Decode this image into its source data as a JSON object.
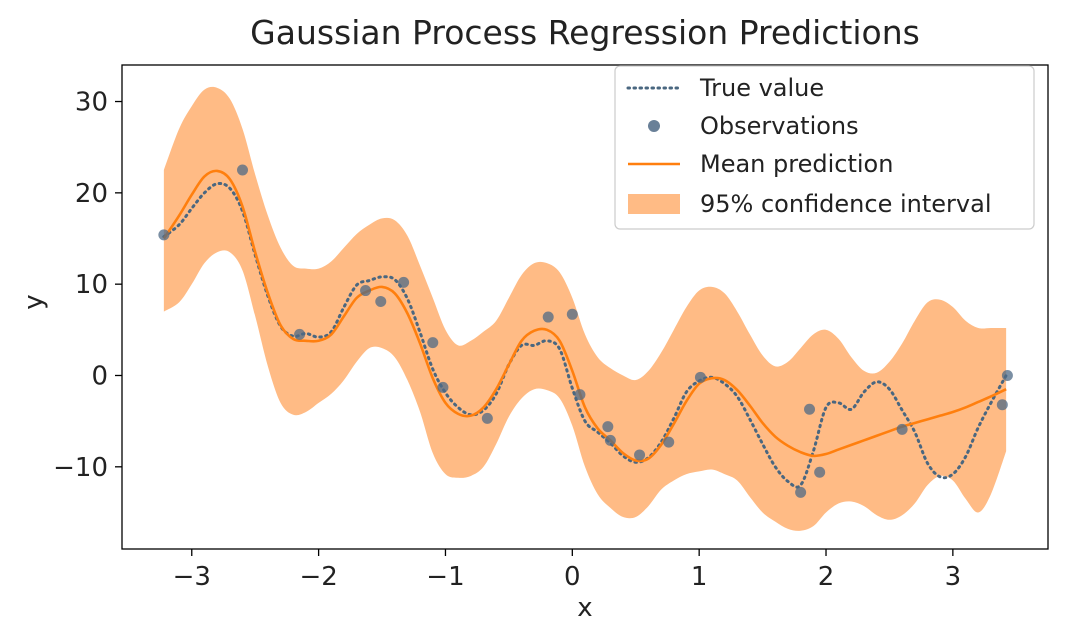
{
  "chart_data": {
    "type": "line",
    "title": "Gaussian Process Regression Predictions",
    "xlabel": "x",
    "ylabel": "y",
    "xlim": [
      -3.55,
      3.75
    ],
    "ylim": [
      -19,
      34
    ],
    "xticks": [
      -3,
      -2,
      -1,
      0,
      1,
      2,
      3
    ],
    "yticks": [
      -10,
      0,
      10,
      20,
      30
    ],
    "xtick_labels": [
      "−3",
      "−2",
      "−1",
      "0",
      "1",
      "2",
      "3"
    ],
    "ytick_labels": [
      "−10",
      "0",
      "10",
      "20",
      "30"
    ],
    "grid": false,
    "legend_position": "top-right",
    "legend": [
      "True value",
      "Observations",
      "Mean prediction",
      "95% confidence interval"
    ],
    "colors": {
      "true_value": "#4a6780",
      "observations": "#4f6a86",
      "mean": "#ff7f0e",
      "band": "#ffbb85"
    },
    "series": [
      {
        "name": "True value",
        "style": "dotted",
        "x": [
          -3.22,
          -3.1,
          -3.0,
          -2.9,
          -2.8,
          -2.7,
          -2.6,
          -2.5,
          -2.4,
          -2.3,
          -2.2,
          -2.1,
          -2.0,
          -1.9,
          -1.8,
          -1.7,
          -1.6,
          -1.5,
          -1.4,
          -1.3,
          -1.2,
          -1.1,
          -1.0,
          -0.9,
          -0.8,
          -0.7,
          -0.6,
          -0.5,
          -0.4,
          -0.3,
          -0.2,
          -0.1,
          0.0,
          0.1,
          0.2,
          0.3,
          0.4,
          0.5,
          0.6,
          0.7,
          0.8,
          0.9,
          1.0,
          1.1,
          1.2,
          1.3,
          1.4,
          1.5,
          1.6,
          1.7,
          1.8,
          1.9,
          2.0,
          2.1,
          2.2,
          2.3,
          2.4,
          2.5,
          2.6,
          2.7,
          2.8,
          2.9,
          3.0,
          3.1,
          3.2,
          3.3,
          3.42
        ],
        "y": [
          15.2,
          16.5,
          18.3,
          20.0,
          21.0,
          20.5,
          18.0,
          13.2,
          8.7,
          5.4,
          4.3,
          4.6,
          4.2,
          4.8,
          7.5,
          9.9,
          10.4,
          10.8,
          10.5,
          8.4,
          4.7,
          0.7,
          -1.9,
          -3.5,
          -4.3,
          -3.8,
          -2.0,
          1.2,
          3.3,
          3.3,
          3.8,
          2.9,
          -1.4,
          -5.0,
          -6.2,
          -7.4,
          -8.8,
          -9.5,
          -9.0,
          -7.3,
          -4.7,
          -1.8,
          -0.6,
          -0.2,
          -0.9,
          -2.3,
          -4.8,
          -7.5,
          -10.0,
          -11.6,
          -12.0,
          -8.3,
          -3.5,
          -3.0,
          -3.7,
          -1.8,
          -0.7,
          -1.5,
          -3.8,
          -6.2,
          -9.6,
          -11.1,
          -10.8,
          -8.9,
          -5.7,
          -3.0,
          0.0
        ]
      },
      {
        "name": "Mean prediction",
        "style": "solid",
        "x": [
          -3.22,
          -3.1,
          -3.0,
          -2.9,
          -2.8,
          -2.7,
          -2.6,
          -2.5,
          -2.4,
          -2.3,
          -2.2,
          -2.1,
          -2.0,
          -1.9,
          -1.8,
          -1.7,
          -1.6,
          -1.5,
          -1.4,
          -1.3,
          -1.2,
          -1.1,
          -1.0,
          -0.9,
          -0.8,
          -0.7,
          -0.6,
          -0.5,
          -0.4,
          -0.3,
          -0.2,
          -0.1,
          0.0,
          0.1,
          0.2,
          0.3,
          0.4,
          0.5,
          0.6,
          0.7,
          0.8,
          0.9,
          1.0,
          1.1,
          1.2,
          1.3,
          1.4,
          1.5,
          1.6,
          1.7,
          1.8,
          1.9,
          2.0,
          2.1,
          2.2,
          2.3,
          2.4,
          2.5,
          2.6,
          2.7,
          2.8,
          2.9,
          3.0,
          3.1,
          3.2,
          3.3,
          3.42
        ],
        "y": [
          15.0,
          17.5,
          19.8,
          21.8,
          22.4,
          21.5,
          18.5,
          13.5,
          9.0,
          5.5,
          4.0,
          3.8,
          3.8,
          4.5,
          6.5,
          8.5,
          9.3,
          9.7,
          9.0,
          6.8,
          3.5,
          -0.3,
          -3.0,
          -4.2,
          -4.4,
          -3.5,
          -1.5,
          1.2,
          3.8,
          4.9,
          5.0,
          3.8,
          0.5,
          -3.5,
          -5.8,
          -7.1,
          -8.5,
          -9.3,
          -9.1,
          -7.6,
          -5.3,
          -2.8,
          -0.9,
          -0.3,
          -0.5,
          -1.6,
          -3.3,
          -5.2,
          -6.7,
          -7.7,
          -8.4,
          -8.8,
          -8.6,
          -8.1,
          -7.6,
          -7.1,
          -6.6,
          -6.1,
          -5.6,
          -5.2,
          -4.8,
          -4.4,
          -4.0,
          -3.5,
          -2.9,
          -2.3,
          -1.5
        ]
      }
    ],
    "band": {
      "name": "95% confidence interval",
      "x": [
        -3.22,
        -3.1,
        -3.0,
        -2.9,
        -2.8,
        -2.7,
        -2.6,
        -2.5,
        -2.4,
        -2.3,
        -2.2,
        -2.1,
        -2.0,
        -1.9,
        -1.8,
        -1.7,
        -1.6,
        -1.5,
        -1.4,
        -1.3,
        -1.2,
        -1.1,
        -1.0,
        -0.9,
        -0.8,
        -0.7,
        -0.6,
        -0.5,
        -0.4,
        -0.3,
        -0.2,
        -0.1,
        0.0,
        0.1,
        0.2,
        0.3,
        0.4,
        0.5,
        0.6,
        0.7,
        0.8,
        0.9,
        1.0,
        1.1,
        1.2,
        1.3,
        1.4,
        1.5,
        1.6,
        1.7,
        1.8,
        1.9,
        2.0,
        2.1,
        2.2,
        2.3,
        2.4,
        2.5,
        2.6,
        2.7,
        2.8,
        2.9,
        3.0,
        3.1,
        3.2,
        3.3,
        3.42
      ],
      "upper": [
        22.5,
        27.0,
        29.5,
        31.3,
        31.5,
        30.3,
        27.0,
        22.0,
        17.5,
        14.0,
        12.0,
        11.7,
        11.7,
        12.5,
        14.0,
        15.5,
        16.5,
        17.2,
        17.0,
        15.3,
        12.0,
        8.5,
        5.0,
        3.3,
        3.8,
        4.8,
        6.0,
        8.5,
        11.0,
        12.3,
        12.3,
        11.3,
        8.5,
        4.5,
        2.0,
        0.8,
        0.0,
        -0.5,
        0.5,
        2.5,
        5.0,
        7.5,
        9.3,
        9.7,
        9.0,
        7.0,
        4.5,
        2.2,
        1.0,
        1.5,
        3.0,
        4.5,
        5.0,
        4.0,
        2.0,
        0.5,
        0.3,
        1.5,
        3.5,
        6.0,
        8.0,
        8.3,
        7.5,
        6.0,
        5.2,
        5.2,
        5.2
      ],
      "lower": [
        7.0,
        8.0,
        10.0,
        12.3,
        13.5,
        13.5,
        11.5,
        6.5,
        1.0,
        -3.0,
        -4.3,
        -4.0,
        -3.0,
        -2.0,
        -0.5,
        1.5,
        3.0,
        3.0,
        2.0,
        -0.5,
        -4.0,
        -8.5,
        -10.8,
        -11.2,
        -11.0,
        -10.0,
        -7.5,
        -4.5,
        -2.5,
        -1.5,
        -1.6,
        -2.5,
        -5.5,
        -10.0,
        -13.0,
        -14.5,
        -15.5,
        -15.5,
        -14.3,
        -12.5,
        -11.5,
        -10.8,
        -10.5,
        -10.3,
        -10.8,
        -11.5,
        -13.3,
        -15.0,
        -16.0,
        -16.8,
        -17.0,
        -16.5,
        -15.0,
        -14.0,
        -13.8,
        -14.3,
        -15.3,
        -15.8,
        -15.3,
        -14.0,
        -12.0,
        -11.0,
        -11.5,
        -13.5,
        -15.0,
        -13.0,
        -8.3
      ]
    },
    "observations": {
      "name": "Observations",
      "x": [
        -3.22,
        -2.6,
        -2.15,
        -1.63,
        -1.51,
        -1.33,
        -1.1,
        -1.02,
        -0.67,
        -0.19,
        0.0,
        0.06,
        0.28,
        0.3,
        0.53,
        0.76,
        1.01,
        1.8,
        1.87,
        1.95,
        2.6,
        3.39,
        3.43
      ],
      "y": [
        15.4,
        22.5,
        4.5,
        9.3,
        8.1,
        10.2,
        3.6,
        -1.3,
        -4.7,
        6.4,
        6.7,
        -2.1,
        -5.6,
        -7.1,
        -8.7,
        -7.3,
        -0.2,
        -12.8,
        -3.7,
        -10.6,
        -5.9,
        -3.2,
        0.0
      ]
    }
  }
}
